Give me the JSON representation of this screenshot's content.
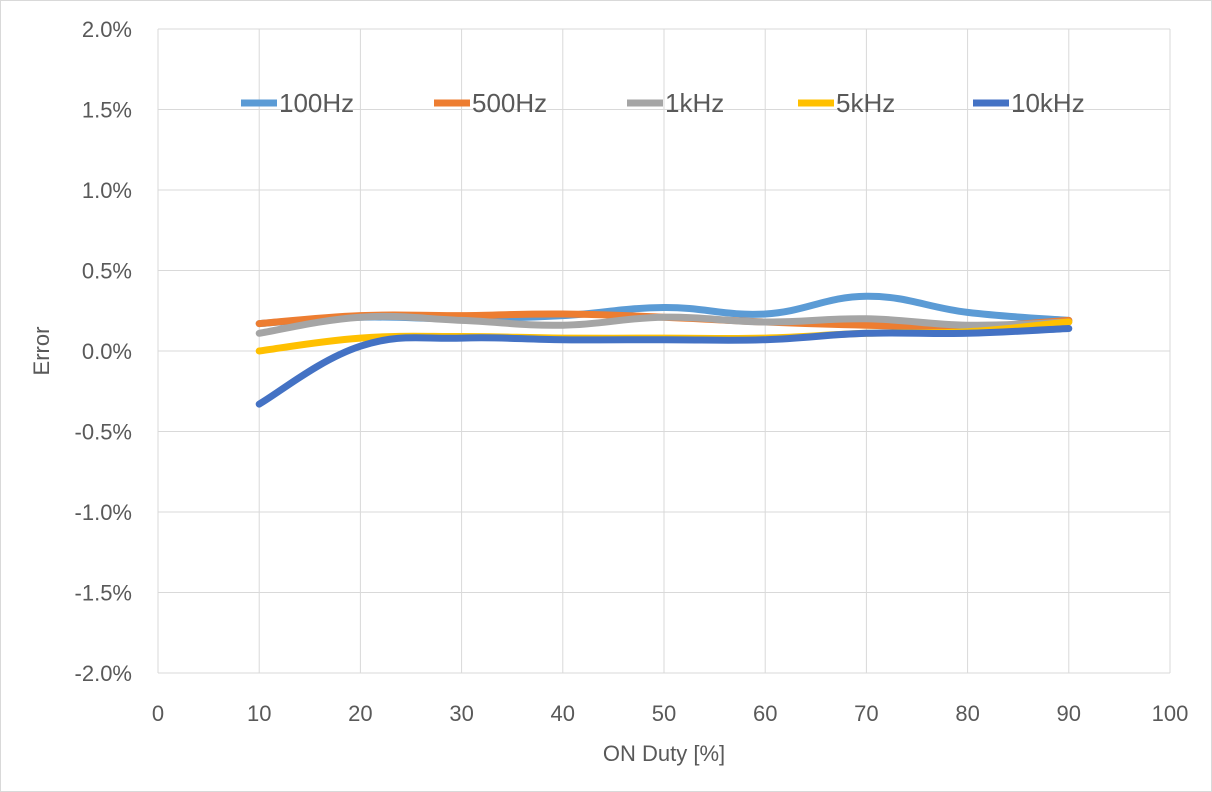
{
  "chart_data": {
    "type": "line",
    "title": "",
    "xlabel": "ON Duty [%]",
    "ylabel": "Error",
    "xlim": [
      0,
      100
    ],
    "ylim": [
      -2.0,
      2.0
    ],
    "x_ticks": [
      "0",
      "10",
      "20",
      "30",
      "40",
      "50",
      "60",
      "70",
      "80",
      "90",
      "100"
    ],
    "y_ticks": [
      "-2.0%",
      "-1.5%",
      "-1.0%",
      "-0.5%",
      "0.0%",
      "0.5%",
      "1.0%",
      "1.5%",
      "2.0%"
    ],
    "grid": true,
    "legend_position": "top",
    "x": [
      10,
      20,
      30,
      40,
      50,
      60,
      70,
      80,
      90
    ],
    "series": [
      {
        "name": "100Hz",
        "color": "#5b9bd5",
        "values": [
          0.17,
          0.21,
          0.2,
          0.22,
          0.27,
          0.23,
          0.34,
          0.24,
          0.19
        ]
      },
      {
        "name": "500Hz",
        "color": "#ed7d31",
        "values": [
          0.17,
          0.22,
          0.22,
          0.23,
          0.21,
          0.18,
          0.16,
          0.15,
          0.19
        ]
      },
      {
        "name": "1kHz",
        "color": "#a5a5a5",
        "values": [
          0.11,
          0.21,
          0.19,
          0.16,
          0.21,
          0.18,
          0.2,
          0.16,
          0.18
        ]
      },
      {
        "name": "5kHz",
        "color": "#ffc000",
        "values": [
          0.0,
          0.08,
          0.09,
          0.08,
          0.08,
          0.08,
          0.11,
          0.12,
          0.18
        ]
      },
      {
        "name": "10kHz",
        "color": "#4472c4",
        "values": [
          -0.33,
          0.03,
          0.08,
          0.07,
          0.07,
          0.07,
          0.11,
          0.11,
          0.14
        ]
      }
    ]
  }
}
